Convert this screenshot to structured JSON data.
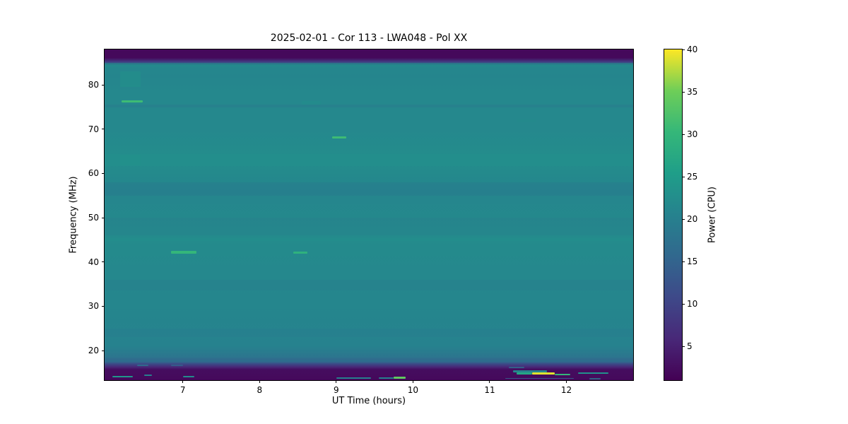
{
  "chart_data": {
    "type": "heatmap",
    "title": "2025-02-01 - Cor 113 - LWA048 - Pol XX",
    "xlabel": "UT Time (hours)",
    "ylabel": "Frequency (MHz)",
    "colorbar_label": "Power (CPU)",
    "colormap": "viridis",
    "x_ticks": [
      7,
      8,
      9,
      10,
      11,
      12
    ],
    "y_ticks": [
      20,
      30,
      40,
      50,
      60,
      70,
      80
    ],
    "colorbar_ticks": [
      5,
      10,
      15,
      20,
      25,
      30,
      35,
      40
    ],
    "x_range_hours": [
      5.98,
      12.87
    ],
    "y_range_mhz": [
      13.3,
      88.0
    ],
    "power_range_cpu": [
      1,
      40
    ],
    "legend": "none",
    "grid": false,
    "viridis_stops": [
      [
        0.0,
        "#440154"
      ],
      [
        0.125,
        "#482878"
      ],
      [
        0.25,
        "#3e4989"
      ],
      [
        0.375,
        "#31688e"
      ],
      [
        0.5,
        "#26828e"
      ],
      [
        0.625,
        "#1f9e89"
      ],
      [
        0.75,
        "#35b779"
      ],
      [
        0.875,
        "#6ece58"
      ],
      [
        1.0,
        "#fde725"
      ]
    ],
    "background_profile": [
      {
        "freq_mhz": 88.0,
        "power": 2.0
      },
      {
        "freq_mhz": 86.1,
        "power": 2.0
      },
      {
        "freq_mhz": 85.2,
        "power": 9.0
      },
      {
        "freq_mhz": 84.4,
        "power": 21.5
      },
      {
        "freq_mhz": 82.0,
        "power": 21.0
      },
      {
        "freq_mhz": 78.0,
        "power": 21.5
      },
      {
        "freq_mhz": 70.0,
        "power": 21.5
      },
      {
        "freq_mhz": 63.0,
        "power": 22.5
      },
      {
        "freq_mhz": 56.0,
        "power": 21.0
      },
      {
        "freq_mhz": 45.0,
        "power": 22.0
      },
      {
        "freq_mhz": 38.0,
        "power": 21.5
      },
      {
        "freq_mhz": 28.0,
        "power": 21.0
      },
      {
        "freq_mhz": 21.0,
        "power": 20.5
      },
      {
        "freq_mhz": 18.5,
        "power": 18.0
      },
      {
        "freq_mhz": 17.2,
        "power": 13.0
      },
      {
        "freq_mhz": 16.3,
        "power": 6.0
      },
      {
        "freq_mhz": 15.7,
        "power": 2.5
      },
      {
        "freq_mhz": 13.3,
        "power": 2.0
      }
    ],
    "bands": [
      {
        "f0": 85.0,
        "f1": 84.2,
        "power": 23,
        "alpha": 0.45
      },
      {
        "f0": 75.6,
        "f1": 74.9,
        "power": 16,
        "alpha": 0.25
      },
      {
        "f0": 64.3,
        "f1": 61.6,
        "power": 23,
        "alpha": 0.4
      },
      {
        "f0": 58.0,
        "f1": 55.0,
        "power": 17,
        "alpha": 0.22
      },
      {
        "f0": 50.0,
        "f1": 46.0,
        "power": 18,
        "alpha": 0.18
      },
      {
        "f0": 45.4,
        "f1": 44.8,
        "power": 23,
        "alpha": 0.5
      },
      {
        "f0": 36.0,
        "f1": 33.5,
        "power": 18,
        "alpha": 0.18
      },
      {
        "f0": 25.0,
        "f1": 23.0,
        "power": 18,
        "alpha": 0.18
      },
      {
        "f0": 17.9,
        "f1": 17.3,
        "power": 19,
        "alpha": 0.45
      }
    ],
    "features": [
      {
        "f": 81.3,
        "df": 3.6,
        "t0": 6.18,
        "t1": 6.45,
        "power": 24,
        "alpha": 0.4
      },
      {
        "f": 63.0,
        "df": 2.5,
        "t0": 6.18,
        "t1": 6.45,
        "power": 24,
        "alpha": 0.3
      },
      {
        "f": 76.3,
        "df": 0.5,
        "t0": 6.2,
        "t1": 6.48,
        "power": 31,
        "alpha": 1
      },
      {
        "f": 42.2,
        "df": 0.5,
        "t0": 6.85,
        "t1": 7.18,
        "power": 30,
        "alpha": 1
      },
      {
        "f": 42.1,
        "df": 0.45,
        "t0": 8.44,
        "t1": 8.62,
        "power": 29,
        "alpha": 1
      },
      {
        "f": 68.1,
        "df": 0.5,
        "t0": 8.95,
        "t1": 9.13,
        "power": 31,
        "alpha": 1
      },
      {
        "f": 76.0,
        "df": 0.8,
        "t0": 8.55,
        "t1": 8.8,
        "power": 23,
        "alpha": 0.45
      },
      {
        "f": 72.0,
        "df": 0.5,
        "t0": 11.35,
        "t1": 11.6,
        "power": 22,
        "alpha": 0.45
      },
      {
        "f": 14.1,
        "df": 0.4,
        "t0": 6.08,
        "t1": 6.35,
        "power": 24,
        "alpha": 1
      },
      {
        "f": 14.4,
        "df": 0.3,
        "t0": 6.5,
        "t1": 6.6,
        "power": 20,
        "alpha": 1
      },
      {
        "f": 16.7,
        "df": 0.3,
        "t0": 6.4,
        "t1": 6.55,
        "power": 18,
        "alpha": 0.8
      },
      {
        "f": 16.7,
        "df": 0.3,
        "t0": 6.85,
        "t1": 7.0,
        "power": 16,
        "alpha": 0.7
      },
      {
        "f": 14.1,
        "df": 0.35,
        "t0": 7.0,
        "t1": 7.15,
        "power": 22,
        "alpha": 1
      },
      {
        "f": 13.8,
        "df": 0.35,
        "t0": 9.0,
        "t1": 9.45,
        "power": 20,
        "alpha": 1
      },
      {
        "f": 13.8,
        "df": 0.35,
        "t0": 9.55,
        "t1": 9.75,
        "power": 20,
        "alpha": 1
      },
      {
        "f": 13.9,
        "df": 0.4,
        "t0": 9.75,
        "t1": 9.9,
        "power": 34,
        "alpha": 1
      },
      {
        "f": 16.2,
        "df": 0.3,
        "t0": 11.25,
        "t1": 11.45,
        "power": 17,
        "alpha": 0.8
      },
      {
        "f": 15.3,
        "df": 0.35,
        "t0": 11.3,
        "t1": 11.75,
        "power": 21,
        "alpha": 1
      },
      {
        "f": 14.8,
        "df": 0.45,
        "t0": 11.35,
        "t1": 11.55,
        "power": 27,
        "alpha": 1
      },
      {
        "f": 14.8,
        "df": 0.6,
        "t0": 11.55,
        "t1": 11.85,
        "power": 39,
        "alpha": 1
      },
      {
        "f": 14.6,
        "df": 0.4,
        "t0": 11.85,
        "t1": 12.05,
        "power": 30,
        "alpha": 1
      },
      {
        "f": 13.7,
        "df": 0.3,
        "t0": 11.2,
        "t1": 12.1,
        "power": 14,
        "alpha": 0.9
      },
      {
        "f": 14.9,
        "df": 0.4,
        "t0": 12.15,
        "t1": 12.55,
        "power": 23,
        "alpha": 1
      },
      {
        "f": 13.6,
        "df": 0.3,
        "t0": 12.3,
        "t1": 12.45,
        "power": 18,
        "alpha": 0.8
      }
    ]
  }
}
